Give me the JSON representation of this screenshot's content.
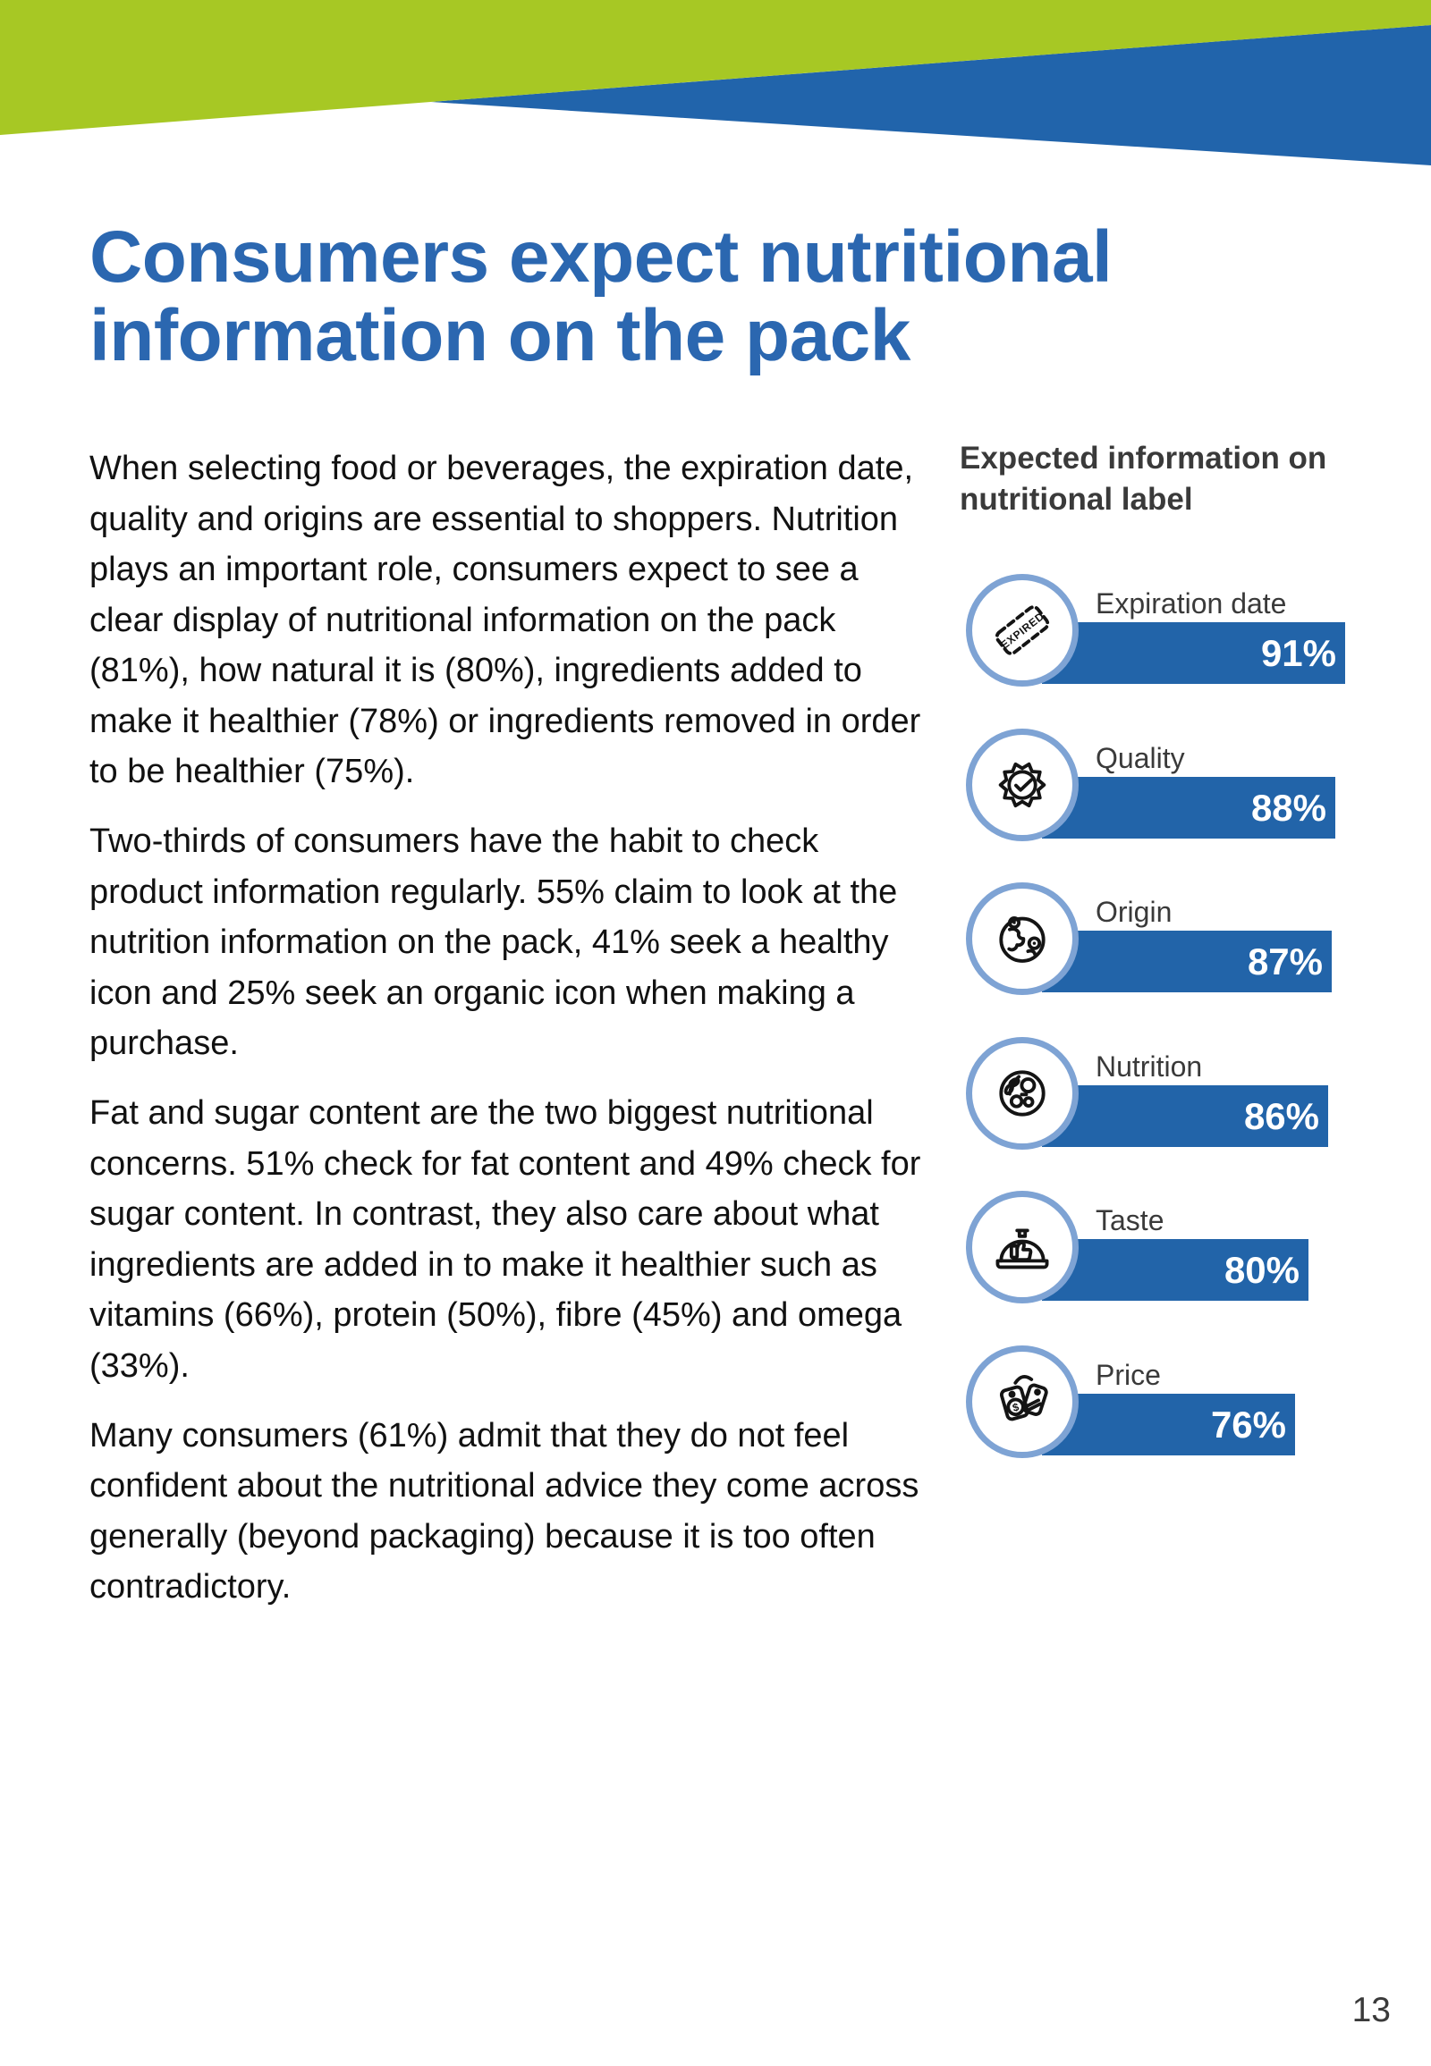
{
  "page": {
    "number": "13"
  },
  "colors": {
    "header_green": "#a7c824",
    "header_blue": "#2164ab",
    "title_blue": "#2b67b0",
    "bar_blue": "#2264a9",
    "ring_blue": "#7ea3d4",
    "text_dark": "#3a3a3a"
  },
  "title": {
    "lines": [
      "Consumers expect nutritional",
      "information on the pack"
    ]
  },
  "article": {
    "paragraphs": [
      "When selecting food or beverages, the expiration date, quality and origins are essential to shoppers. Nutrition plays an important role, consumers expect to see a clear display of nutritional information on the pack (81%), how natural it is (80%), ingredients added to make it healthier (78%) or ingredients removed in order to be healthier (75%).",
      "Two-thirds of consumers have the habit to check product information regularly. 55% claim to look at the nutrition information on the pack, 41% seek a healthy icon and 25% seek an organic icon when making a purchase.",
      "Fat and sugar content are the two biggest nutritional concerns. 51% check for fat content and 49% check for sugar content. In contrast, they also care about what ingredients are added in to make it healthier such as vitamins (66%), protein (50%), fibre (45%) and omega (33%).",
      "Many consumers (61%) admit that they do not feel confident about the nutritional advice they come across generally (beyond packaging) because it is too often contradictory."
    ]
  },
  "chart": {
    "heading_lines": [
      "Expected information on",
      "nutritional label"
    ],
    "rows": [
      {
        "label": "Expiration date",
        "value": 91,
        "display": "91%",
        "icon": "expired-stamp-icon"
      },
      {
        "label": "Quality",
        "value": 88,
        "display": "88%",
        "icon": "quality-badge-icon"
      },
      {
        "label": "Origin",
        "value": 87,
        "display": "87%",
        "icon": "origin-globe-icon"
      },
      {
        "label": "Nutrition",
        "value": 86,
        "display": "86%",
        "icon": "nutrition-plate-icon"
      },
      {
        "label": "Taste",
        "value": 80,
        "display": "80%",
        "icon": "taste-cloche-icon"
      },
      {
        "label": "Price",
        "value": 76,
        "display": "76%",
        "icon": "price-tags-icon"
      }
    ]
  },
  "chart_data": {
    "type": "bar",
    "orientation": "horizontal",
    "title": "Expected information on nutritional label",
    "categories": [
      "Expiration date",
      "Quality",
      "Origin",
      "Nutrition",
      "Taste",
      "Price"
    ],
    "values": [
      91,
      88,
      87,
      86,
      80,
      76
    ],
    "value_labels": [
      "91%",
      "88%",
      "87%",
      "86%",
      "80%",
      "76%"
    ],
    "xlabel": "",
    "ylabel": "",
    "xlim": [
      0,
      100
    ],
    "grid": false,
    "legend": false,
    "bar_color": "#2264a9"
  }
}
